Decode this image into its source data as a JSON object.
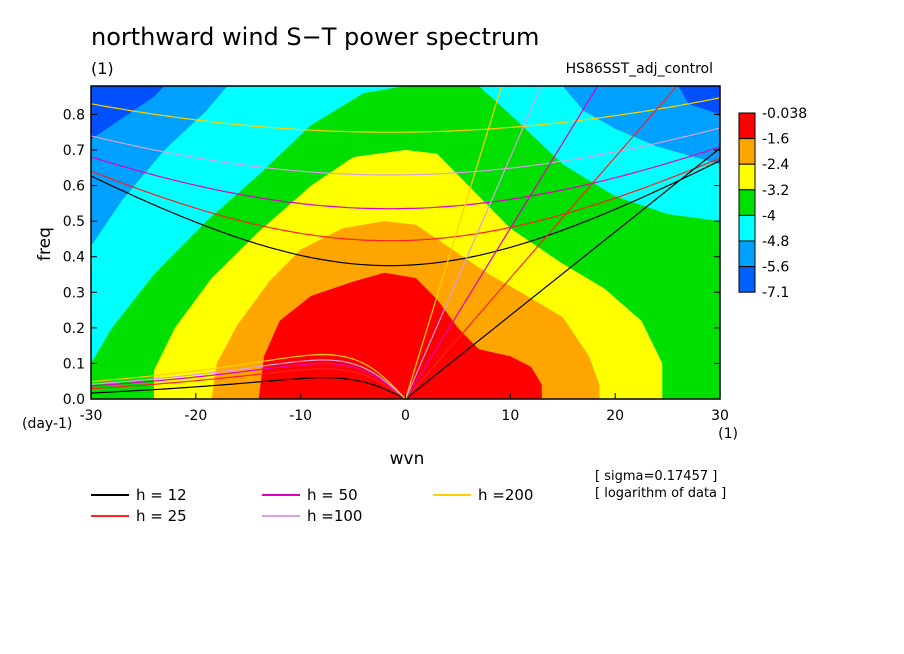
{
  "chart_data": {
    "type": "heatmap",
    "title": "northward wind S−T power spectrum",
    "subtitle": "(1)",
    "run_label": "HS86SST_adj_control",
    "xlabel": "wvn",
    "ylabel": "freq",
    "x_unit": "(1)",
    "y_unit": "(day-1)",
    "xlim": [
      -30,
      30
    ],
    "ylim": [
      0,
      0.88
    ],
    "x_ticks": [
      "-30",
      "-20",
      "-10",
      "0",
      "10",
      "20",
      "30"
    ],
    "y_ticks": [
      "0.0",
      "0.1",
      "0.2",
      "0.3",
      "0.4",
      "0.5",
      "0.6",
      "0.7",
      "0.8"
    ],
    "colorbar": {
      "labels": [
        "-0.038",
        "-1.6",
        "-2.4",
        "-3.2",
        "-4",
        "-4.8",
        "-5.6",
        "-7.1"
      ],
      "colors": [
        "#ff0000",
        "#ffa500",
        "#ffff00",
        "#00e000",
        "#00ffff",
        "#00a0ff",
        "#0060ff"
      ]
    },
    "contour_regions": [
      {
        "level": "above -1.6",
        "color": "#ff0000",
        "points": [
          [
            -14,
            0
          ],
          [
            -13.5,
            0.12
          ],
          [
            -12,
            0.22
          ],
          [
            -9,
            0.29
          ],
          [
            -5,
            0.33
          ],
          [
            -2,
            0.355
          ],
          [
            1,
            0.34
          ],
          [
            3,
            0.28
          ],
          [
            5,
            0.2
          ],
          [
            7,
            0.14
          ],
          [
            10,
            0.12
          ],
          [
            12,
            0.09
          ],
          [
            13,
            0.04
          ],
          [
            13,
            0
          ]
        ]
      },
      {
        "level": "-2.4 to -1.6",
        "color": "#ffa500",
        "points": [
          [
            -18.5,
            0
          ],
          [
            -18,
            0.1
          ],
          [
            -16,
            0.21
          ],
          [
            -13,
            0.33
          ],
          [
            -10,
            0.42
          ],
          [
            -6,
            0.48
          ],
          [
            -2,
            0.5
          ],
          [
            1,
            0.49
          ],
          [
            4,
            0.43
          ],
          [
            8,
            0.35
          ],
          [
            11,
            0.3
          ],
          [
            15,
            0.23
          ],
          [
            17.5,
            0.12
          ],
          [
            18.5,
            0.04
          ],
          [
            18.5,
            0
          ]
        ]
      },
      {
        "level": "-3.2 to -2.4",
        "color": "#ffff00",
        "points": [
          [
            -24,
            0
          ],
          [
            -24,
            0.08
          ],
          [
            -22,
            0.2
          ],
          [
            -18.5,
            0.34
          ],
          [
            -14,
            0.47
          ],
          [
            -9,
            0.6
          ],
          [
            -5,
            0.68
          ],
          [
            0,
            0.7
          ],
          [
            3,
            0.69
          ],
          [
            6,
            0.6
          ],
          [
            10,
            0.48
          ],
          [
            15,
            0.38
          ],
          [
            19,
            0.31
          ],
          [
            22.5,
            0.22
          ],
          [
            24.5,
            0.1
          ],
          [
            24.5,
            0
          ]
        ]
      },
      {
        "level": "-4 to -3.2",
        "color": "#00e000",
        "points": [
          [
            -30,
            0
          ],
          [
            -30,
            0.1
          ],
          [
            -28,
            0.2
          ],
          [
            -24,
            0.35
          ],
          [
            -19,
            0.5
          ],
          [
            -14,
            0.63
          ],
          [
            -9,
            0.77
          ],
          [
            -4,
            0.86
          ],
          [
            0,
            0.88
          ],
          [
            7,
            0.88
          ],
          [
            10,
            0.8
          ],
          [
            15,
            0.66
          ],
          [
            20,
            0.57
          ],
          [
            25,
            0.52
          ],
          [
            30,
            0.5
          ],
          [
            30,
            0
          ]
        ]
      },
      {
        "level": "-4.8 to -4",
        "color": "#00ffff",
        "points": [
          [
            -30,
            0
          ],
          [
            -30,
            0.43
          ],
          [
            -27,
            0.56
          ],
          [
            -23,
            0.7
          ],
          [
            -19,
            0.81
          ],
          [
            -17,
            0.88
          ],
          [
            15,
            0.88
          ],
          [
            17,
            0.81
          ],
          [
            20,
            0.76
          ],
          [
            24,
            0.71
          ],
          [
            30,
            0.66
          ],
          [
            30,
            0
          ]
        ]
      },
      {
        "level": "-5.6 to -4.8",
        "color": "#00a0ff",
        "points": [
          [
            -30,
            0
          ],
          [
            -30,
            0.73
          ],
          [
            -27,
            0.79
          ],
          [
            -24,
            0.85
          ],
          [
            -23,
            0.88
          ],
          [
            26,
            0.88
          ],
          [
            27,
            0.83
          ],
          [
            30,
            0.8
          ],
          [
            30,
            0
          ]
        ]
      }
    ],
    "dispersion_legend": [
      {
        "label": "h = 12",
        "color": "#000000"
      },
      {
        "label": "h = 25",
        "color": "#ff2020"
      },
      {
        "label": "h = 50",
        "color": "#e000c0"
      },
      {
        "label": "h =100",
        "color": "#d8a0e0"
      },
      {
        "label": "h =200",
        "color": "#ffd000"
      }
    ],
    "dispersion_curves": {
      "inertia_gravity_minima": [
        {
          "h": "12",
          "freq": 0.375
        },
        {
          "h": "25",
          "freq": 0.445
        },
        {
          "h": "50",
          "freq": 0.535
        },
        {
          "h": "100",
          "freq": 0.63
        },
        {
          "h": "200",
          "freq": 0.75
        }
      ],
      "kelvin_slopes": [
        {
          "h": "12",
          "slope": 0.0235
        },
        {
          "h": "25",
          "slope": 0.034
        },
        {
          "h": "50",
          "slope": 0.048
        },
        {
          "h": "100",
          "slope": 0.068
        },
        {
          "h": "200",
          "slope": 0.096
        }
      ],
      "rossby_peaks": [
        {
          "h": "12",
          "freq": 0.06
        },
        {
          "h": "25",
          "freq": 0.085
        },
        {
          "h": "50",
          "freq": 0.1
        },
        {
          "h": "100",
          "freq": 0.11
        },
        {
          "h": "200",
          "freq": 0.125
        }
      ]
    },
    "notes": [
      "[ sigma=0.17457 ]",
      "[ logarithm of data ]"
    ]
  }
}
